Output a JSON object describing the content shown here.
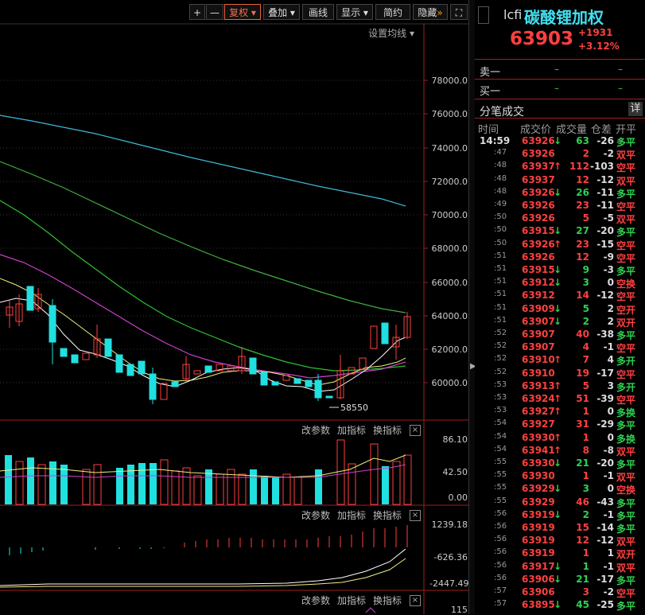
{
  "toolbar": {
    "plus": "+",
    "minus": "—",
    "fuquan": "复权",
    "diejia": "叠加",
    "huaxian": "画线",
    "xianshi": "显示",
    "jianyue": "简约",
    "yincang": "隐藏",
    "more": "»",
    "fullscreen": "⛶"
  },
  "settings_label": "设置均线",
  "price_axis": [
    "78000.0",
    "76000.0",
    "74000.0",
    "72000.0",
    "70000.0",
    "68000.0",
    "66000.0",
    "64000.0",
    "62000.0",
    "60000.0"
  ],
  "low_marker": "58550",
  "panel_tools": {
    "gai": "改参数",
    "jia": "加指标",
    "huan": "换指标",
    "close": "×"
  },
  "volume_axis": [
    "86.10",
    "42.50",
    "0.00"
  ],
  "macd_axis": [
    "1239.18",
    "-626.36",
    "-2447.49"
  ],
  "bottom_axis": "115",
  "quote": {
    "code": "lcfi",
    "name": "碳酸锂加权",
    "price": "63903",
    "change": "+1931",
    "pct": "+3.12%",
    "sell_label": "卖一",
    "sell_value": "–",
    "sell_qty": "–",
    "buy_label": "买一",
    "buy_value": "–",
    "buy_qty": "–",
    "ticks_title": "分笔成交",
    "detail": "详",
    "col_time": "时间",
    "col_price": "成交价",
    "col_vol": "成交量",
    "col_oi": "仓差",
    "col_type": "开平"
  },
  "ticks": [
    {
      "t": "14:59",
      "p": "63926",
      "a": "↓",
      "v": "63",
      "d": "-26",
      "k": "多平"
    },
    {
      "t": ":47",
      "p": "63926",
      "a": "",
      "v": "2",
      "d": "-2",
      "k": "双平"
    },
    {
      "t": ":48",
      "p": "63937",
      "a": "↑",
      "v": "112",
      "d": "-103",
      "k": "空平"
    },
    {
      "t": ":48",
      "p": "63937",
      "a": "",
      "v": "12",
      "d": "-12",
      "k": "双平"
    },
    {
      "t": ":48",
      "p": "63926",
      "a": "↓",
      "v": "26",
      "d": "-11",
      "k": "多平"
    },
    {
      "t": ":49",
      "p": "63926",
      "a": "",
      "v": "23",
      "d": "-11",
      "k": "空平"
    },
    {
      "t": ":50",
      "p": "63926",
      "a": "",
      "v": "5",
      "d": "-5",
      "k": "双平"
    },
    {
      "t": ":50",
      "p": "63915",
      "a": "↓",
      "v": "27",
      "d": "-20",
      "k": "多平"
    },
    {
      "t": ":50",
      "p": "63926",
      "a": "↑",
      "v": "23",
      "d": "-15",
      "k": "空平"
    },
    {
      "t": ":51",
      "p": "63926",
      "a": "",
      "v": "12",
      "d": "-9",
      "k": "空平"
    },
    {
      "t": ":51",
      "p": "63915",
      "a": "↓",
      "v": "9",
      "d": "-3",
      "k": "多平"
    },
    {
      "t": ":51",
      "p": "63912",
      "a": "↓",
      "v": "3",
      "d": "0",
      "k": "空换"
    },
    {
      "t": ":51",
      "p": "63912",
      "a": "",
      "v": "14",
      "d": "-12",
      "k": "空平"
    },
    {
      "t": ":51",
      "p": "63909",
      "a": "↓",
      "v": "5",
      "d": "2",
      "k": "空开"
    },
    {
      "t": ":51",
      "p": "63907",
      "a": "↓",
      "v": "2",
      "d": "2",
      "k": "双开"
    },
    {
      "t": ":52",
      "p": "63907",
      "a": "",
      "v": "40",
      "d": "-38",
      "k": "多平"
    },
    {
      "t": ":52",
      "p": "63907",
      "a": "",
      "v": "4",
      "d": "-1",
      "k": "空平"
    },
    {
      "t": ":52",
      "p": "63910",
      "a": "↑",
      "v": "7",
      "d": "4",
      "k": "多开"
    },
    {
      "t": ":52",
      "p": "63910",
      "a": "",
      "v": "19",
      "d": "-17",
      "k": "空平"
    },
    {
      "t": ":53",
      "p": "63913",
      "a": "↑",
      "v": "5",
      "d": "3",
      "k": "多开"
    },
    {
      "t": ":53",
      "p": "63924",
      "a": "↑",
      "v": "51",
      "d": "-39",
      "k": "空平"
    },
    {
      "t": ":53",
      "p": "63927",
      "a": "↑",
      "v": "1",
      "d": "0",
      "k": "多换"
    },
    {
      "t": ":54",
      "p": "63927",
      "a": "",
      "v": "31",
      "d": "-29",
      "k": "多平"
    },
    {
      "t": ":54",
      "p": "63930",
      "a": "↑",
      "v": "1",
      "d": "0",
      "k": "多换"
    },
    {
      "t": ":54",
      "p": "63941",
      "a": "↑",
      "v": "8",
      "d": "-8",
      "k": "双平"
    },
    {
      "t": ":55",
      "p": "63930",
      "a": "↓",
      "v": "21",
      "d": "-20",
      "k": "多平"
    },
    {
      "t": ":55",
      "p": "63930",
      "a": "",
      "v": "1",
      "d": "-1",
      "k": "双平"
    },
    {
      "t": ":55",
      "p": "63929",
      "a": "↓",
      "v": "3",
      "d": "0",
      "k": "空换"
    },
    {
      "t": ":55",
      "p": "63929",
      "a": "",
      "v": "46",
      "d": "-43",
      "k": "多平"
    },
    {
      "t": ":56",
      "p": "63919",
      "a": "↓",
      "v": "2",
      "d": "-1",
      "k": "多平"
    },
    {
      "t": ":56",
      "p": "63919",
      "a": "",
      "v": "15",
      "d": "-14",
      "k": "多平"
    },
    {
      "t": ":56",
      "p": "63919",
      "a": "",
      "v": "12",
      "d": "-12",
      "k": "双平"
    },
    {
      "t": ":56",
      "p": "63919",
      "a": "",
      "v": "1",
      "d": "1",
      "k": "双开"
    },
    {
      "t": ":56",
      "p": "63917",
      "a": "↓",
      "v": "1",
      "d": "-1",
      "k": "双平"
    },
    {
      "t": ":56",
      "p": "63906",
      "a": "↓",
      "v": "21",
      "d": "-17",
      "k": "多平"
    },
    {
      "t": ":57",
      "p": "63906",
      "a": "",
      "v": "3",
      "d": "-2",
      "k": "空平"
    },
    {
      "t": ":57",
      "p": "63895",
      "a": "↓",
      "v": "45",
      "d": "-25",
      "k": "多平"
    }
  ]
}
